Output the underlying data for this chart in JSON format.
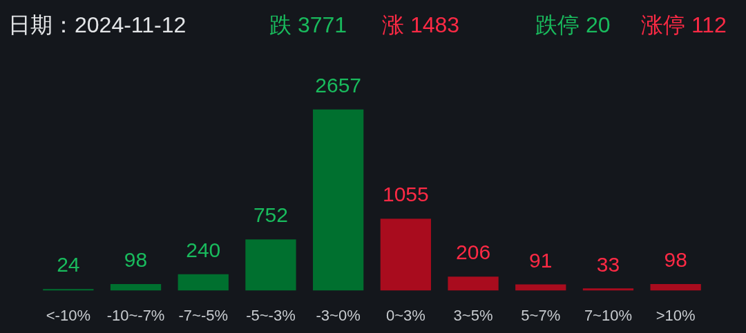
{
  "chart_data": {
    "type": "bar",
    "title": "日期：2024-11-12",
    "annotations": [
      "跌 3771",
      "涨 1483",
      "跌停 20",
      "涨停 112"
    ],
    "categories": [
      "<-10%",
      "-10~-7%",
      "-7~-5%",
      "-5~-3%",
      "-3~0%",
      "0~3%",
      "3~5%",
      "5~7%",
      "7~10%",
      ">10%"
    ],
    "values": [
      24,
      98,
      240,
      752,
      2657,
      1055,
      206,
      91,
      33,
      98
    ],
    "colors": [
      "#00702f",
      "#00702f",
      "#00702f",
      "#00702f",
      "#00702f",
      "#a90c1e",
      "#a90c1e",
      "#a90c1e",
      "#a90c1e",
      "#a90c1e"
    ],
    "data_labels": true
  }
}
